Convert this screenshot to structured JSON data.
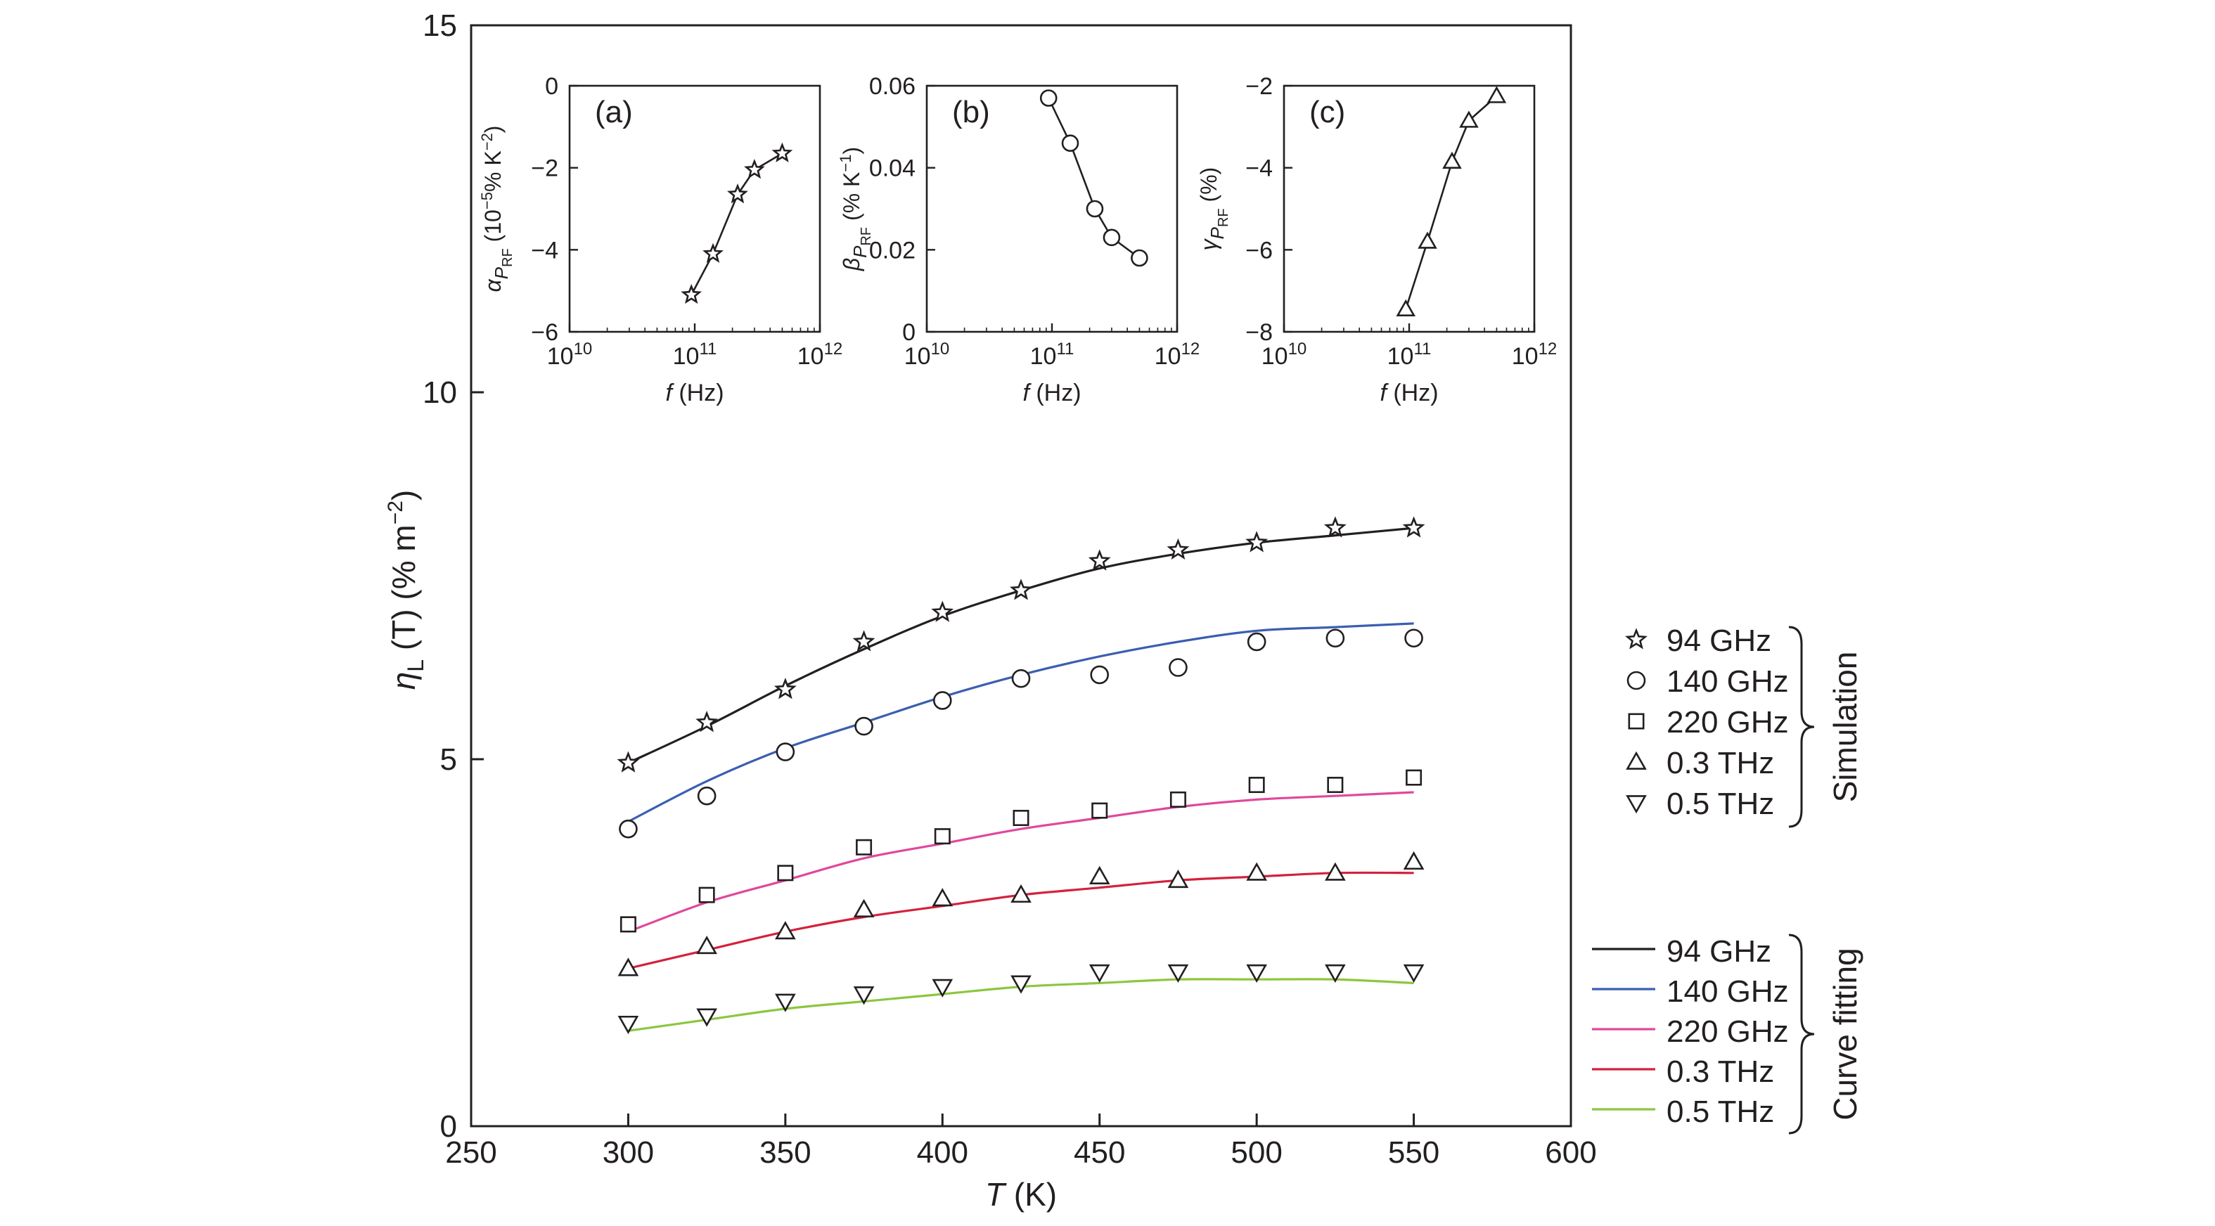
{
  "chart_data": [
    {
      "type": "scatter",
      "title": "",
      "xlabel_italic": "T",
      "xlabel_unit": " (K)",
      "ylabel_sym": "η",
      "ylabel_sub": "L",
      "ylabel_rest": " (T) (% m",
      "ylabel_exp": "−2",
      "ylabel_close": ")",
      "xlim": [
        250,
        600
      ],
      "ylim": [
        0,
        15
      ],
      "x_ticks": [
        250,
        300,
        350,
        400,
        450,
        500,
        550,
        600
      ],
      "y_ticks": [
        0,
        5,
        10,
        15
      ],
      "x": [
        300,
        325,
        350,
        375,
        400,
        425,
        450,
        475,
        500,
        525,
        550
      ],
      "simulation_series": [
        {
          "name": "94 GHz",
          "marker": "star",
          "values": [
            4.95,
            5.5,
            5.95,
            6.6,
            7.0,
            7.3,
            7.7,
            7.85,
            7.95,
            8.15,
            8.15
          ]
        },
        {
          "name": "140 GHz",
          "marker": "circle",
          "values": [
            4.05,
            4.5,
            5.1,
            5.45,
            5.8,
            6.1,
            6.15,
            6.25,
            6.6,
            6.65,
            6.65
          ]
        },
        {
          "name": "220 GHz",
          "marker": "square",
          "values": [
            2.75,
            3.15,
            3.45,
            3.8,
            3.95,
            4.2,
            4.3,
            4.45,
            4.65,
            4.65,
            4.75
          ]
        },
        {
          "name": "0.3 THz",
          "marker": "triangle-up",
          "values": [
            2.15,
            2.45,
            2.65,
            2.95,
            3.1,
            3.15,
            3.4,
            3.35,
            3.45,
            3.45,
            3.6
          ]
        },
        {
          "name": "0.5 THz",
          "marker": "triangle-down",
          "values": [
            1.4,
            1.5,
            1.7,
            1.8,
            1.9,
            1.95,
            2.1,
            2.1,
            2.1,
            2.1,
            2.1
          ]
        }
      ],
      "fitting_series": [
        {
          "name": "94 GHz",
          "color": "#231f20",
          "values": [
            4.95,
            5.45,
            6.0,
            6.5,
            6.95,
            7.3,
            7.6,
            7.8,
            7.95,
            8.05,
            8.15
          ]
        },
        {
          "name": "140 GHz",
          "color": "#3a5fb0",
          "values": [
            4.15,
            4.7,
            5.15,
            5.5,
            5.85,
            6.15,
            6.4,
            6.6,
            6.75,
            6.8,
            6.85
          ]
        },
        {
          "name": "220 GHz",
          "color": "#e0489c",
          "values": [
            2.65,
            3.05,
            3.35,
            3.65,
            3.85,
            4.05,
            4.2,
            4.35,
            4.45,
            4.5,
            4.55
          ]
        },
        {
          "name": "0.3 THz",
          "color": "#d4213d",
          "values": [
            2.15,
            2.4,
            2.65,
            2.85,
            3.0,
            3.15,
            3.25,
            3.35,
            3.4,
            3.45,
            3.45
          ]
        },
        {
          "name": "0.5 THz",
          "color": "#8cc63f",
          "values": [
            1.3,
            1.45,
            1.6,
            1.7,
            1.8,
            1.9,
            1.95,
            2.0,
            2.0,
            2.0,
            1.95
          ]
        }
      ],
      "legend_group_simulation": "Simulation",
      "legend_group_fitting": "Curve fitting",
      "legend_placement": "right, outside plot",
      "grid": false
    },
    {
      "type": "line",
      "panel_label": "(a)",
      "xlabel_italic": "f",
      "xlabel_unit": " (Hz)",
      "ylabel_sym": "α",
      "ylabel_sub": "P",
      "ylabel_subsub": "RF",
      "ylabel_rest": " (10",
      "ylabel_exp1": "−5",
      "ylabel_mid": "% K",
      "ylabel_exp2": "−2",
      "ylabel_close": ")",
      "x_scale": "log",
      "xlim": [
        10000000000.0,
        1000000000000.0
      ],
      "ylim": [
        -6,
        0
      ],
      "x_tick_base": "10",
      "x_tick_exps": [
        "10",
        "11",
        "12"
      ],
      "y_ticks": [
        -6,
        -4,
        -2,
        0
      ],
      "y_tick_labels": [
        "−6",
        "−4",
        "−2",
        "0"
      ],
      "marker": "star",
      "x": [
        94000000000.0,
        140000000000.0,
        220000000000.0,
        300000000000.0,
        500000000000.0
      ],
      "values": [
        -5.1,
        -4.1,
        -2.65,
        -2.05,
        -1.65
      ]
    },
    {
      "type": "line",
      "panel_label": "(b)",
      "xlabel_italic": "f",
      "xlabel_unit": " (Hz)",
      "ylabel_sym": "β",
      "ylabel_sub": "P",
      "ylabel_subsub": "RF",
      "ylabel_rest": " (% K",
      "ylabel_exp1": "−1",
      "ylabel_close": ")",
      "x_scale": "log",
      "xlim": [
        10000000000.0,
        1000000000000.0
      ],
      "ylim": [
        0,
        0.06
      ],
      "x_tick_base": "10",
      "x_tick_exps": [
        "10",
        "11",
        "12"
      ],
      "y_ticks": [
        0,
        0.02,
        0.04,
        0.06
      ],
      "y_tick_labels": [
        "0",
        "0.02",
        "0.04",
        "0.06"
      ],
      "marker": "circle",
      "x": [
        94000000000.0,
        140000000000.0,
        220000000000.0,
        300000000000.0,
        500000000000.0
      ],
      "values": [
        0.057,
        0.046,
        0.03,
        0.023,
        0.018
      ]
    },
    {
      "type": "line",
      "panel_label": "(c)",
      "xlabel_italic": "f",
      "xlabel_unit": " (Hz)",
      "ylabel_sym": "γ",
      "ylabel_sub": "P",
      "ylabel_subsub": "RF",
      "ylabel_rest": " (%)",
      "x_scale": "log",
      "xlim": [
        10000000000.0,
        1000000000000.0
      ],
      "ylim": [
        -8,
        -2
      ],
      "x_tick_base": "10",
      "x_tick_exps": [
        "10",
        "11",
        "12"
      ],
      "y_ticks": [
        -8,
        -6,
        -4,
        -2
      ],
      "y_tick_labels": [
        "−8",
        "−6",
        "−4",
        "−2"
      ],
      "marker": "triangle-up",
      "x": [
        94000000000.0,
        140000000000.0,
        220000000000.0,
        300000000000.0,
        500000000000.0
      ],
      "values": [
        -7.45,
        -5.8,
        -3.85,
        -2.85,
        -2.25
      ]
    }
  ]
}
